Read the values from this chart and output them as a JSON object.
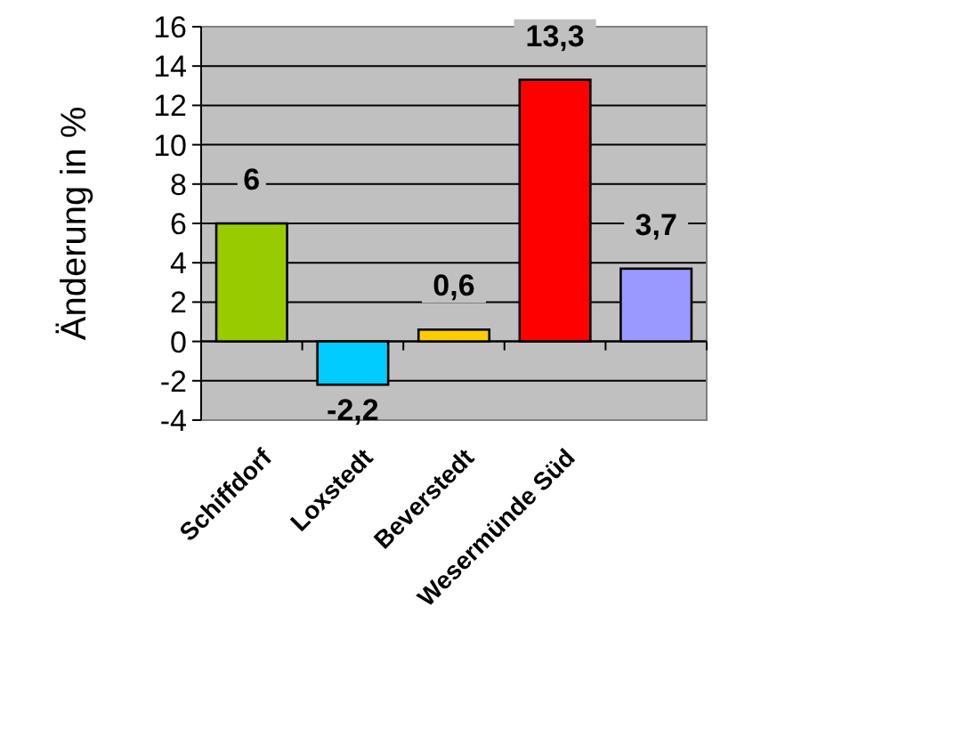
{
  "chart_data": {
    "type": "bar",
    "ylabel": "Änderung in %",
    "categories": [
      "Schiffdorf",
      "Loxstedt",
      "Beverstedt",
      "Wesermünde Süd",
      null
    ],
    "values": [
      6,
      -2.2,
      0.6,
      13.3,
      3.7
    ],
    "colors": [
      "#99cc00",
      "#00ccff",
      "#ffcc00",
      "#ff0000",
      "#9999ff"
    ],
    "value_labels": [
      "6",
      "-2,2",
      "0,6",
      "13,3",
      "3,7"
    ],
    "ylim": [
      -4,
      16
    ],
    "yticks": [
      -4,
      -2,
      0,
      2,
      4,
      6,
      8,
      10,
      12,
      14,
      16
    ],
    "grid": "y"
  }
}
